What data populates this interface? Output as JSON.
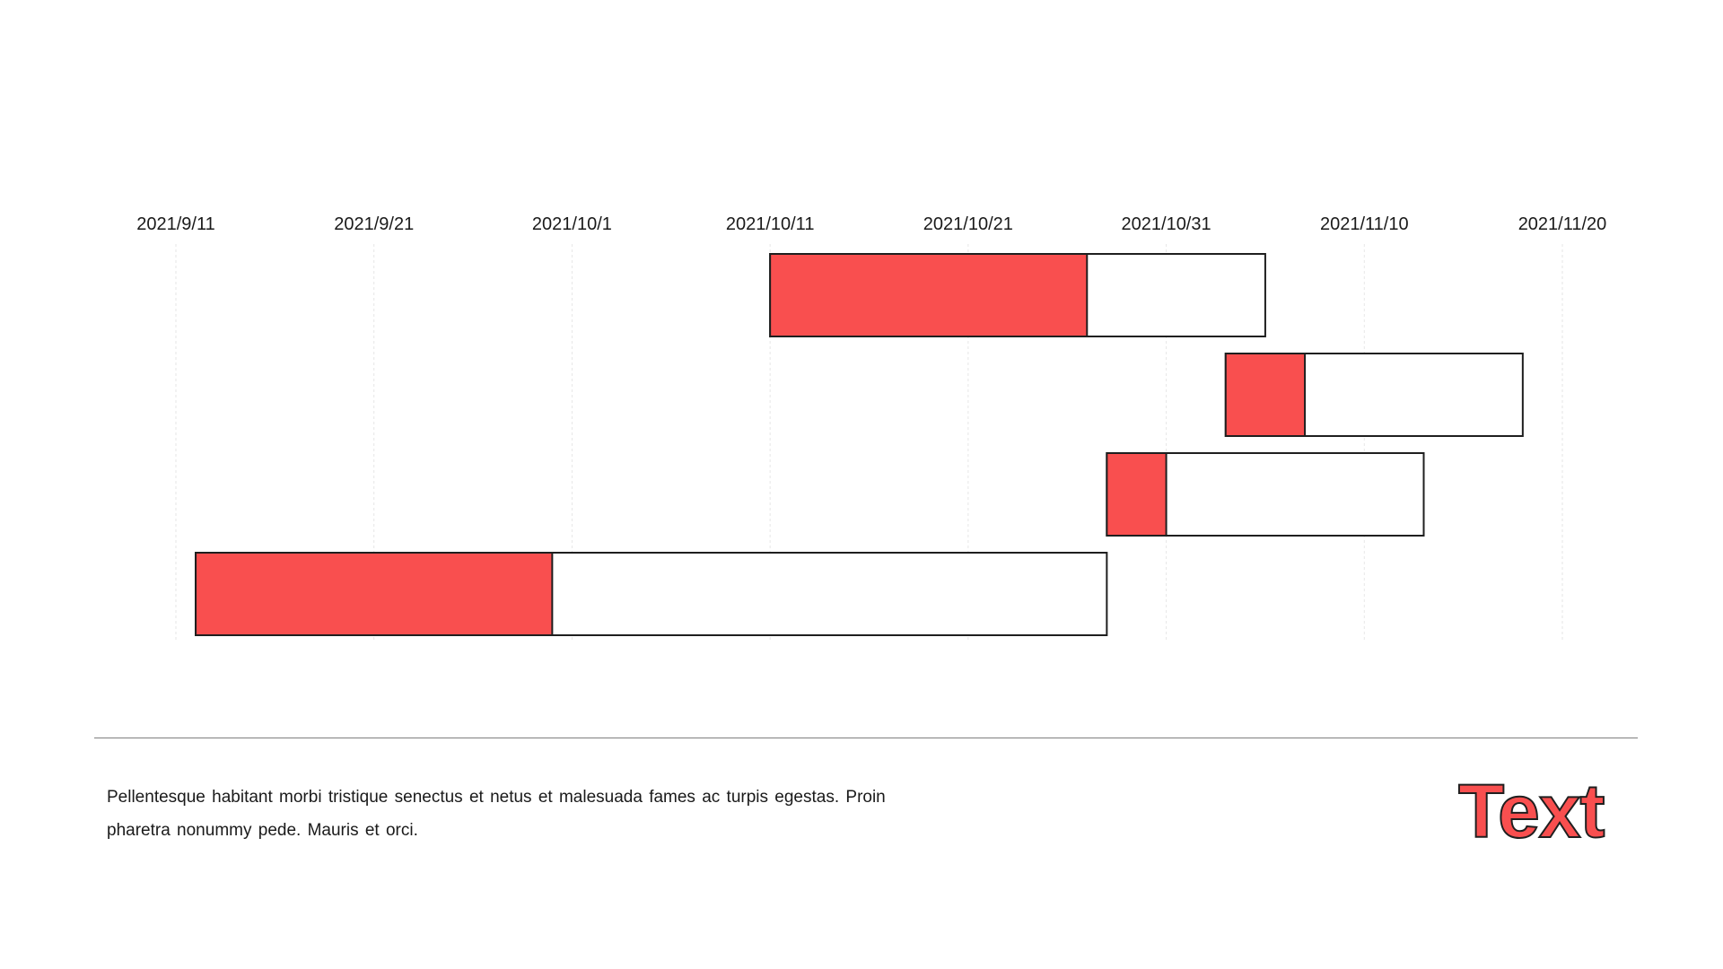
{
  "colors": {
    "accent": "#f94f4f",
    "bar_outline": "#1f1f1f",
    "grid": "#e6e6e6"
  },
  "chart_data": {
    "type": "gantt",
    "x_axis": {
      "type": "date",
      "position": "top",
      "range": [
        "2021-09-11",
        "2021-11-20"
      ],
      "tick_labels": [
        "2021/9/11",
        "2021/9/21",
        "2021/10/1",
        "2021/10/11",
        "2021/10/21",
        "2021/10/31",
        "2021/11/10",
        "2021/11/20"
      ],
      "tick_dates": [
        "2021-09-11",
        "2021-09-21",
        "2021-10-01",
        "2021-10-11",
        "2021-10-21",
        "2021-10-31",
        "2021-11-10",
        "2021-11-20"
      ]
    },
    "grid": true,
    "tasks": [
      {
        "start": "2021-10-11",
        "progress_end": "2021-10-27",
        "end": "2021-11-05"
      },
      {
        "start": "2021-11-03",
        "progress_end": "2021-11-07",
        "end": "2021-11-18"
      },
      {
        "start": "2021-10-28",
        "progress_end": "2021-10-31",
        "end": "2021-11-13"
      },
      {
        "start": "2021-09-12",
        "progress_end": "2021-09-30",
        "end": "2021-10-28"
      }
    ]
  },
  "footer": {
    "body": "Pellentesque habitant morbi tristique senectus et netus et malesuada fames ac turpis egestas. Proin pharetra nonummy  pede. Mauris et orci.",
    "heading": "Text"
  }
}
